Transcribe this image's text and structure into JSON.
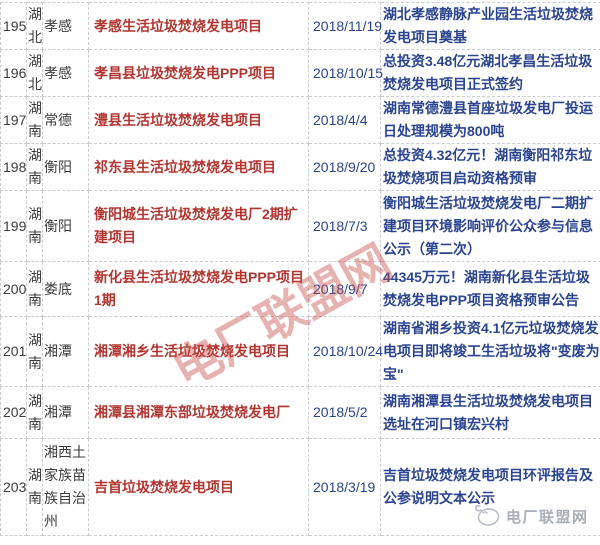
{
  "watermark": {
    "text": "电厂联盟网"
  },
  "stamp": {
    "text": "电厂联盟网",
    "icon": "doodle-circle-icon"
  },
  "colors": {
    "project_red": "#b23530",
    "info_navy": "#2b4490",
    "plain_dark": "#3c3c3c",
    "border_gray": "#c9ccd2",
    "watermark_red": "rgba(198,74,68,0.42)",
    "stamp_gray": "#a9aeb9"
  },
  "table": {
    "rows": [
      {
        "num": "195",
        "province": "湖北",
        "city": "孝感",
        "project": "孝感生活垃圾焚烧发电项目",
        "date": "2018/11/19",
        "desc": "湖北孝感静脉产业园生活垃圾焚烧发电项目奠基"
      },
      {
        "num": "196",
        "province": "湖北",
        "city": "孝感",
        "project": "孝昌县垃圾焚烧发电PPP项目",
        "date": "2018/10/15",
        "desc": "总投资3.48亿元湖北孝昌生活垃圾焚烧发电项目正式签约"
      },
      {
        "num": "197",
        "province": "湖南",
        "city": "常德",
        "project": "澧县生活垃圾焚烧发电项目",
        "date": "2018/4/4",
        "desc": "湖南常德澧县首座垃圾发电厂投运日处理规模为800吨"
      },
      {
        "num": "198",
        "province": "湖南",
        "city": "衡阳",
        "project": "祁东县生活垃圾焚烧发电项目",
        "date": "2018/9/20",
        "desc": "总投资4.32亿元！湖南衡阳祁东垃圾焚烧项目启动资格预审"
      },
      {
        "num": "199",
        "province": "湖南",
        "city": "衡阳",
        "project": "衡阳城生活垃圾焚烧发电厂2期扩建项目",
        "date": "2018/7/3",
        "desc": "衡阳城生活垃圾焚烧发电厂二期扩建项目环境影响评价公众参与信息公示（第二次）"
      },
      {
        "num": "200",
        "province": "湖南",
        "city": "娄底",
        "project": "新化县生活垃圾焚烧发电PPP项目1期",
        "date": "2018/9/7",
        "desc": "44345万元！湖南新化县生活垃圾焚烧发电PPP项目资格预审公告"
      },
      {
        "num": "201",
        "province": "湖南",
        "city": "湘潭",
        "project": "湘潭湘乡生活垃圾焚烧发电项目",
        "date": "2018/10/24",
        "desc": "湖南省湘乡投资4.1亿元垃圾焚烧发电项目即将竣工生活垃圾将\"变废为宝\""
      },
      {
        "num": "202",
        "province": "湖南",
        "city": "湘潭",
        "project": "湘潭县湘潭东部垃圾焚烧发电厂",
        "date": "2018/5/2",
        "desc": "湖南湘潭县生活垃圾焚烧发电项目选址在河口镇宏兴村"
      },
      {
        "num": "203",
        "province": "湖南",
        "city": "湘西土家族苗族自治州",
        "project": "吉首垃圾焚烧发电项目",
        "date": "2018/3/19",
        "desc": "吉首垃圾焚烧发电项目环评报告及公参说明文本公示"
      }
    ]
  }
}
